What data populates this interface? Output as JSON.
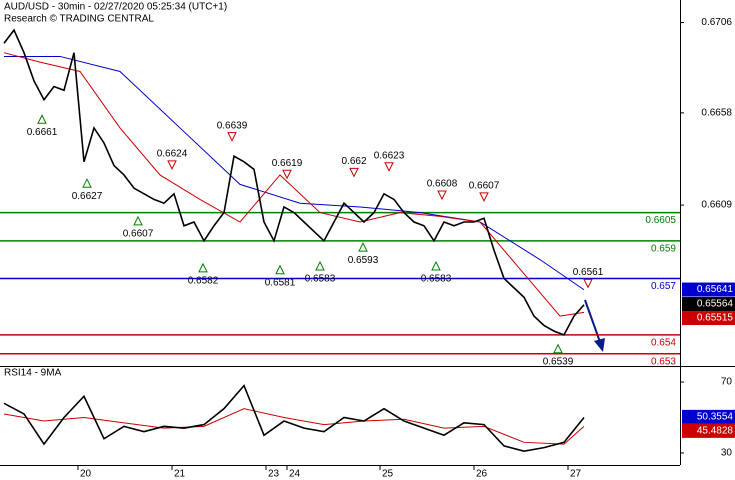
{
  "chart_data": [
    {
      "type": "line",
      "title": "AUD/USD - 30min - 02/27/2020 05:25:34 (UTC+1)",
      "subtitle": "Research © TRADING CENTRAL",
      "xlim": [
        0,
        340
      ],
      "ylim": [
        0.6524,
        0.6718
      ],
      "xticks": [
        {
          "value": 39,
          "label": "20"
        },
        {
          "value": 86,
          "label": "21"
        },
        {
          "value": 133,
          "label": "23"
        },
        {
          "value": 143.5,
          "label": "24"
        },
        {
          "value": 190,
          "label": "25"
        },
        {
          "value": 237,
          "label": "26"
        },
        {
          "value": 284,
          "label": "27"
        }
      ],
      "yticks": [
        0.6706,
        0.6658,
        0.6609
      ],
      "series": [
        {
          "color": "#000000",
          "x": [
            2,
            7,
            12,
            17,
            22,
            27,
            32,
            37,
            42,
            47,
            52,
            57,
            62,
            67,
            72,
            77,
            82,
            87,
            92,
            97,
            102,
            107,
            112,
            117,
            122,
            127,
            132,
            137,
            142,
            147,
            152,
            157,
            162,
            167,
            172,
            177,
            182,
            187,
            192,
            197,
            202,
            207,
            212,
            217,
            222,
            227,
            232,
            237,
            242,
            247,
            252,
            257,
            262,
            267,
            272,
            277,
            282,
            287,
            292
          ],
          "values": [
            0.6695,
            0.6702,
            0.669,
            0.6675,
            0.6665,
            0.6672,
            0.667,
            0.669,
            0.6632,
            0.665,
            0.6642,
            0.663,
            0.6625,
            0.6618,
            0.6615,
            0.6612,
            0.661,
            0.6615,
            0.6598,
            0.66,
            0.659,
            0.6598,
            0.6605,
            0.6635,
            0.6632,
            0.6628,
            0.66,
            0.659,
            0.6608,
            0.6605,
            0.66,
            0.6595,
            0.659,
            0.66,
            0.661,
            0.6605,
            0.66,
            0.6605,
            0.6615,
            0.6612,
            0.6605,
            0.66,
            0.6598,
            0.659,
            0.66,
            0.6598,
            0.66,
            0.66,
            0.6602,
            0.6585,
            0.657,
            0.6565,
            0.656,
            0.655,
            0.6545,
            0.6542,
            0.654,
            0.655,
            0.6556
          ]
        },
        {
          "color": "#cc0000",
          "x": [
            2,
            20,
            40,
            60,
            80,
            100,
            120,
            140,
            160,
            180,
            200,
            220,
            240,
            260,
            280,
            292
          ],
          "values": [
            0.669,
            0.6685,
            0.668,
            0.665,
            0.6625,
            0.6612,
            0.66,
            0.6625,
            0.6605,
            0.66,
            0.6605,
            0.6603,
            0.66,
            0.6575,
            0.655,
            0.6552
          ]
        },
        {
          "color": "#0000cc",
          "x": [
            2,
            30,
            60,
            90,
            120,
            150,
            180,
            210,
            240,
            270,
            292
          ],
          "values": [
            0.6688,
            0.6688,
            0.668,
            0.665,
            0.662,
            0.661,
            0.6608,
            0.6605,
            0.66,
            0.658,
            0.6564
          ]
        }
      ],
      "levels": [
        {
          "value": 0.6605,
          "color": "#008000"
        },
        {
          "value": 0.659,
          "color": "#008000"
        },
        {
          "value": 0.657,
          "color": "#0000cc"
        },
        {
          "value": 0.654,
          "color": "#cc0000"
        },
        {
          "value": 0.653,
          "color": "#cc0000"
        }
      ],
      "annotations": [
        {
          "x": 21,
          "value": 0.6661,
          "dir": "low"
        },
        {
          "x": 43.5,
          "value": 0.6627,
          "dir": "low"
        },
        {
          "x": 69,
          "value": 0.6607,
          "dir": "low"
        },
        {
          "x": 101.5,
          "value": 0.6582,
          "dir": "low"
        },
        {
          "x": 140,
          "value": 0.6581,
          "dir": "low"
        },
        {
          "x": 160,
          "value": 0.6583,
          "dir": "low"
        },
        {
          "x": 181.5,
          "value": 0.6593,
          "dir": "low"
        },
        {
          "x": 218,
          "value": 0.6583,
          "dir": "low"
        },
        {
          "x": 279,
          "value": 0.6539,
          "dir": "low"
        },
        {
          "x": 86,
          "value": 0.6624,
          "dir": "high"
        },
        {
          "x": 116,
          "value": 0.6639,
          "dir": "high"
        },
        {
          "x": 143.5,
          "value": 0.6619,
          "dir": "high"
        },
        {
          "x": 177,
          "value": 0.662,
          "dir": "high"
        },
        {
          "x": 194.5,
          "value": 0.6623,
          "dir": "high"
        },
        {
          "x": 221,
          "value": 0.6608,
          "dir": "high"
        },
        {
          "x": 242,
          "value": 0.6607,
          "dir": "high"
        },
        {
          "x": 294,
          "value": 0.6561,
          "dir": "high"
        }
      ],
      "boxes": [
        {
          "value": 0.65641,
          "color": "#0000cc"
        },
        {
          "value": 0.65564,
          "color": "#000000"
        },
        {
          "value": 0.65515,
          "color": "#cc0000"
        }
      ]
    },
    {
      "type": "line",
      "title": "RSI14 - 9MA",
      "xlim": [
        0,
        340
      ],
      "ylim": [
        23.2,
        78.5
      ],
      "yticks": [
        70,
        30
      ],
      "series": [
        {
          "color": "#000000",
          "x": [
            2,
            12,
            22,
            32,
            42,
            52,
            62,
            72,
            82,
            92,
            102,
            112,
            122,
            132,
            142,
            152,
            162,
            172,
            182,
            192,
            202,
            212,
            222,
            232,
            242,
            252,
            262,
            272,
            282,
            292
          ],
          "values": [
            58,
            52,
            35,
            50,
            62,
            38,
            45,
            42,
            45,
            44,
            46,
            55,
            68,
            40,
            48,
            44,
            42,
            50,
            48,
            55,
            48,
            44,
            40,
            47,
            46,
            34,
            31,
            33,
            36,
            50
          ]
        },
        {
          "color": "#cc0000",
          "x": [
            2,
            22,
            42,
            62,
            82,
            102,
            122,
            142,
            162,
            182,
            202,
            222,
            242,
            262,
            282,
            292
          ],
          "values": [
            52,
            48,
            50,
            47,
            44,
            45,
            55,
            50,
            46,
            48,
            49,
            44,
            45,
            36,
            35,
            45
          ]
        }
      ],
      "boxes": [
        {
          "value": 50.3554,
          "color": "#0000cc"
        },
        {
          "value": 45.4828,
          "color": "#cc0000"
        }
      ]
    }
  ]
}
